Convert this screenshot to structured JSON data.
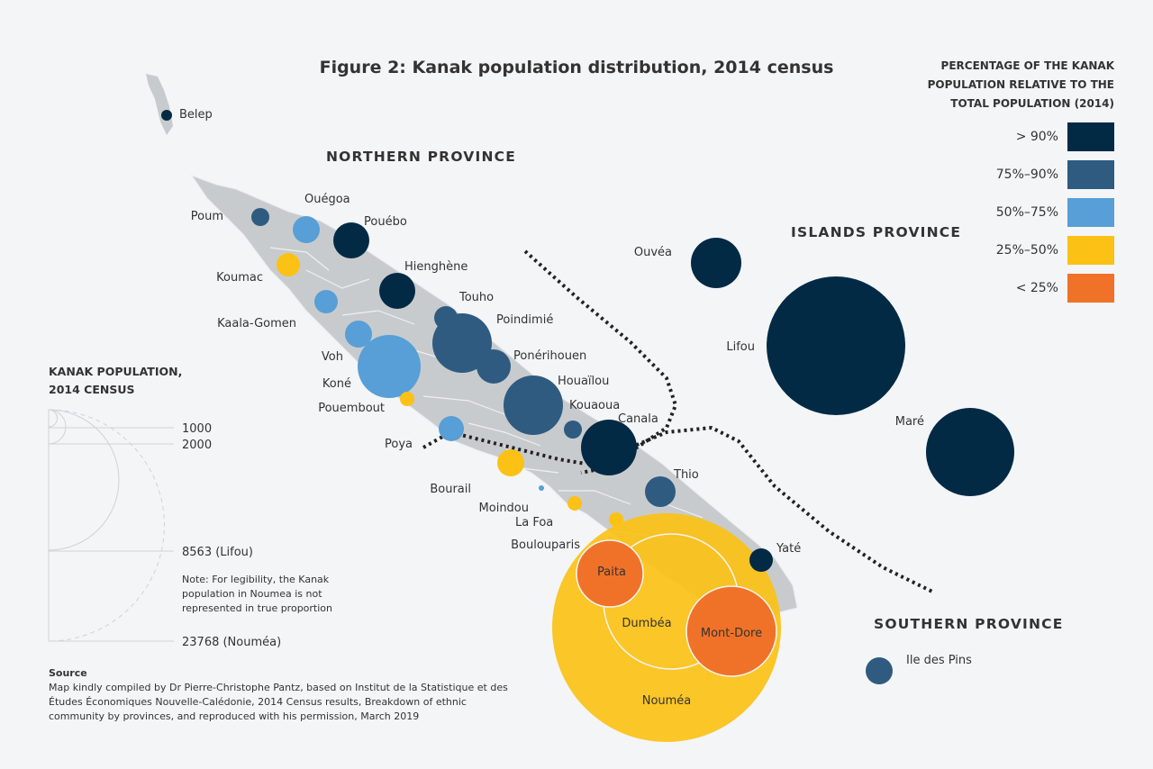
{
  "title": "Figure 2: Kanak population distribution, 2014 census",
  "legend": {
    "title_lines": [
      "PERCENTAGE OF THE KANAK",
      "POPULATION RELATIVE TO THE",
      "TOTAL POPULATION (2014)"
    ],
    "categories": [
      {
        "label": "> 90%",
        "color": "#032a45"
      },
      {
        "label": "75%–90%",
        "color": "#2f5b80"
      },
      {
        "label": "50%–75%",
        "color": "#579fd6"
      },
      {
        "label": "25%–50%",
        "color": "#fbc115"
      },
      {
        "label": "< 25%",
        "color": "#f07228"
      }
    ]
  },
  "provinces": {
    "north": "NORTHERN PROVINCE",
    "islands": "ISLANDS PROVINCE",
    "south": "SOUTHERN PROVINCE"
  },
  "scale": {
    "title_lines": [
      "KANAK POPULATION,",
      "2014 CENSUS"
    ],
    "ticks": [
      "1000",
      "2000",
      "8563 (Lifou)",
      "23768 (Nouméa)"
    ],
    "note": "Note: For legibility, the Kanak population in Noumea is not represented in true proportion"
  },
  "source": {
    "heading": "Source",
    "text": "Map kindly compiled by Dr Pierre-Christophe Pantz, based on Institut de la Statistique et des Études Économiques Nouvelle-Calédonie, 2014 Census results, Breakdown of ethnic community by provinces, and reproduced with his permission, March 2019"
  },
  "communes": [
    {
      "name": "Belep",
      "category": "> 90%"
    },
    {
      "name": "Poum",
      "category": "75%–90%"
    },
    {
      "name": "Ouégoa",
      "category": "50%–75%"
    },
    {
      "name": "Pouébo",
      "category": "> 90%"
    },
    {
      "name": "Koumac",
      "category": "25%–50%"
    },
    {
      "name": "Hienghène",
      "category": "> 90%"
    },
    {
      "name": "Kaala-Gomen",
      "category": "50%–75%"
    },
    {
      "name": "Touho",
      "category": "75%–90%"
    },
    {
      "name": "Poindimié",
      "category": "75%–90%"
    },
    {
      "name": "Voh",
      "category": "50%–75%"
    },
    {
      "name": "Koné",
      "category": "50%–75%"
    },
    {
      "name": "Ponérihouen",
      "category": "75%–90%"
    },
    {
      "name": "Houaïlou",
      "category": "75%–90%"
    },
    {
      "name": "Pouembout",
      "category": "25%–50%"
    },
    {
      "name": "Kouaoua",
      "category": "75%–90%"
    },
    {
      "name": "Canala",
      "category": "> 90%"
    },
    {
      "name": "Poya",
      "category": "50%–75%"
    },
    {
      "name": "Bourail",
      "category": "25%–50%"
    },
    {
      "name": "Moindou",
      "category": "50%–75%"
    },
    {
      "name": "La Foa",
      "category": "25%–50%"
    },
    {
      "name": "Thio",
      "category": "75%–90%"
    },
    {
      "name": "Boulouparis",
      "category": "25%–50%"
    },
    {
      "name": "Yaté",
      "category": "> 90%"
    },
    {
      "name": "Nouméa",
      "category": "25%–50%"
    },
    {
      "name": "Dumbéa",
      "category": "25%–50%"
    },
    {
      "name": "Paita",
      "category": "< 25%"
    },
    {
      "name": "Mont-Dore",
      "category": "< 25%"
    },
    {
      "name": "Ouvéa",
      "category": "> 90%"
    },
    {
      "name": "Lifou",
      "category": "> 90%"
    },
    {
      "name": "Maré",
      "category": "> 90%"
    },
    {
      "name": "Ile des Pins",
      "category": "75%–90%"
    }
  ]
}
